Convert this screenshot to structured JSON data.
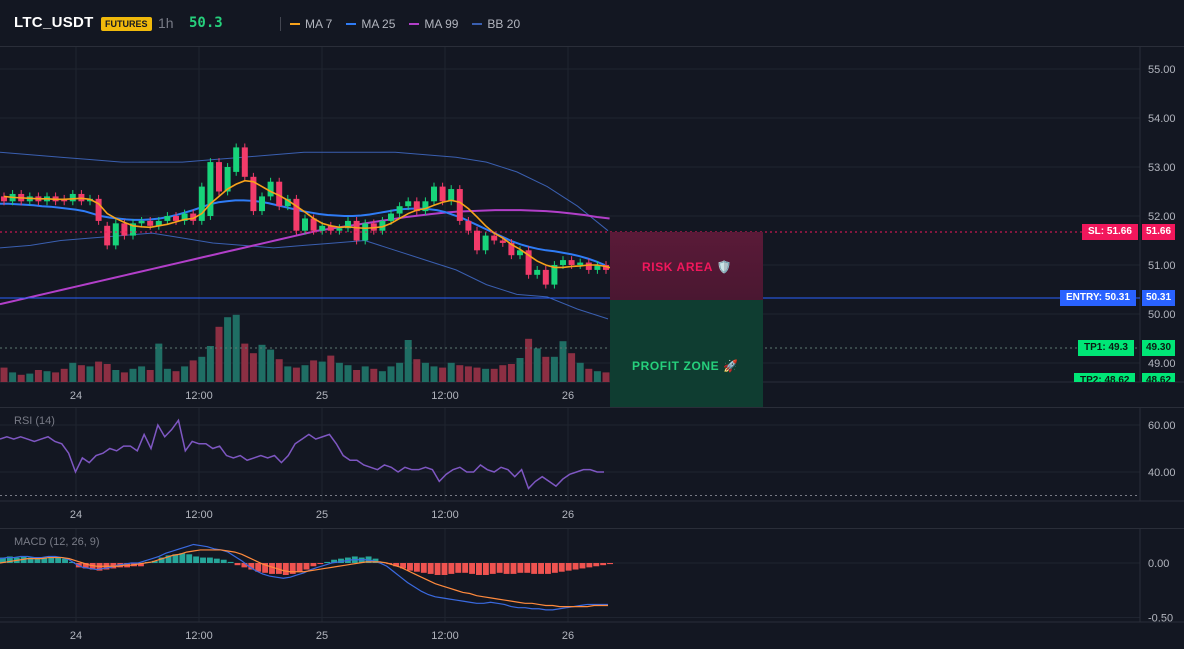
{
  "header": {
    "symbol": "LTC_USDT",
    "badge": "FUTURES",
    "timeframe": "1h",
    "last_price": "50.3",
    "indicators": [
      {
        "label": "MA 7",
        "color": "#f7a21b"
      },
      {
        "label": "MA 25",
        "color": "#2f7cf6"
      },
      {
        "label": "MA 99",
        "color": "#b23fc9"
      },
      {
        "label": "BB 20",
        "color": "#3a5fb0"
      }
    ]
  },
  "colors": {
    "up": "#26a69a",
    "up_bright": "#17d37a",
    "down": "#f23b6a",
    "vol_up": "#1f6e64",
    "vol_down": "#8c2f43",
    "sl": "#f2175c",
    "entry": "#2962ff",
    "tp": "#00e676",
    "rsi": "#7e57c2",
    "macd": "#3a6ae0",
    "signal": "#ff8a3d"
  },
  "price_axis": {
    "ticks": [
      "55.00",
      "54.00",
      "53.00",
      "52.00",
      "51.00",
      "50.00",
      "49.00"
    ]
  },
  "time_axis": {
    "labels": [
      "24",
      "12:00",
      "25",
      "12:00",
      "26"
    ]
  },
  "trade": {
    "sl_label": "SL: 51.66",
    "sl_value": "51.66",
    "entry_label": "ENTRY: 50.31",
    "entry_value": "50.31",
    "tp1_label": "TP1: 49.3",
    "tp1_value": "49.30",
    "tp2_label": "TP2: 48.62",
    "tp2_value": "48.62",
    "risk_label": "RISK AREA 🛡️",
    "profit_label": "PROFIT ZONE 🚀"
  },
  "rsi": {
    "label": "RSI (14)",
    "ticks": [
      "60.00",
      "40.00"
    ],
    "values": [
      54,
      55,
      54,
      55,
      54,
      53,
      54,
      55,
      53,
      52,
      48,
      40,
      46,
      44,
      47,
      48,
      50,
      49,
      51,
      51,
      49,
      56,
      50,
      60,
      55,
      58,
      62,
      49,
      53,
      52,
      52,
      50,
      51,
      47,
      46,
      47,
      45,
      46,
      47,
      46,
      47,
      44,
      47,
      52,
      54,
      56,
      54,
      55,
      56,
      52,
      47,
      45,
      45,
      43,
      42,
      41,
      43,
      42,
      40,
      42,
      41,
      41,
      42,
      41,
      36,
      39,
      41,
      42,
      40,
      40,
      43,
      41,
      40,
      42,
      41,
      38,
      41,
      33,
      36,
      38,
      36,
      34,
      37,
      39,
      40,
      41,
      41,
      40,
      40
    ],
    "oversold": 30
  },
  "macd": {
    "label": "MACD (12, 26, 9)",
    "ticks": [
      "0.00",
      "-0.50"
    ],
    "hist": [
      0.05,
      0.06,
      0.05,
      0.06,
      0.05,
      0.04,
      0.05,
      0.06,
      0.05,
      0.04,
      0.01,
      -0.04,
      -0.05,
      -0.06,
      -0.07,
      -0.06,
      -0.05,
      -0.04,
      -0.04,
      -0.03,
      -0.03,
      0.01,
      0.02,
      0.05,
      0.07,
      0.08,
      0.09,
      0.08,
      0.06,
      0.05,
      0.05,
      0.04,
      0.03,
      0.01,
      -0.02,
      -0.04,
      -0.06,
      -0.08,
      -0.09,
      -0.1,
      -0.1,
      -0.11,
      -0.1,
      -0.08,
      -0.06,
      -0.03,
      -0.01,
      0.01,
      0.03,
      0.04,
      0.05,
      0.06,
      0.05,
      0.06,
      0.04,
      0.01,
      -0.01,
      -0.03,
      -0.05,
      -0.07,
      -0.08,
      -0.09,
      -0.1,
      -0.11,
      -0.11,
      -0.1,
      -0.09,
      -0.09,
      -0.1,
      -0.11,
      -0.11,
      -0.1,
      -0.09,
      -0.1,
      -0.1,
      -0.09,
      -0.09,
      -0.1,
      -0.1,
      -0.1,
      -0.09,
      -0.08,
      -0.07,
      -0.06,
      -0.05,
      -0.04,
      -0.03,
      -0.02,
      -0.01
    ],
    "macd": [
      0.04,
      0.05,
      0.05,
      0.06,
      0.06,
      0.05,
      0.05,
      0.06,
      0.06,
      0.05,
      0.03,
      -0.01,
      -0.04,
      -0.05,
      -0.06,
      -0.05,
      -0.04,
      -0.02,
      -0.01,
      0.0,
      0.0,
      0.02,
      0.04,
      0.06,
      0.09,
      0.11,
      0.13,
      0.15,
      0.17,
      0.16,
      0.15,
      0.13,
      0.12,
      0.1,
      0.06,
      0.02,
      -0.03,
      -0.07,
      -0.1,
      -0.12,
      -0.13,
      -0.14,
      -0.13,
      -0.11,
      -0.09,
      -0.06,
      -0.04,
      -0.02,
      0.0,
      0.01,
      0.02,
      0.03,
      0.03,
      0.03,
      0.02,
      0.0,
      -0.03,
      -0.08,
      -0.13,
      -0.18,
      -0.22,
      -0.26,
      -0.29,
      -0.31,
      -0.32,
      -0.33,
      -0.34,
      -0.35,
      -0.36,
      -0.37,
      -0.37,
      -0.36,
      -0.37,
      -0.38,
      -0.4,
      -0.41,
      -0.41,
      -0.42,
      -0.42,
      -0.43,
      -0.43,
      -0.42,
      -0.41,
      -0.4,
      -0.39,
      -0.38,
      -0.38,
      -0.38,
      -0.38
    ],
    "signal": [
      0.0,
      0.01,
      0.02,
      0.03,
      0.04,
      0.04,
      0.04,
      0.05,
      0.05,
      0.05,
      0.04,
      0.02,
      0.0,
      -0.02,
      -0.03,
      -0.03,
      -0.03,
      -0.03,
      -0.02,
      -0.02,
      -0.01,
      0.0,
      0.01,
      0.03,
      0.05,
      0.07,
      0.08,
      0.1,
      0.11,
      0.12,
      0.12,
      0.12,
      0.12,
      0.11,
      0.1,
      0.08,
      0.05,
      0.02,
      -0.01,
      -0.03,
      -0.05,
      -0.07,
      -0.08,
      -0.08,
      -0.08,
      -0.07,
      -0.06,
      -0.05,
      -0.04,
      -0.03,
      -0.02,
      -0.01,
      0.0,
      0.01,
      0.01,
      0.01,
      0.0,
      -0.02,
      -0.04,
      -0.07,
      -0.1,
      -0.13,
      -0.16,
      -0.19,
      -0.21,
      -0.23,
      -0.25,
      -0.27,
      -0.28,
      -0.3,
      -0.31,
      -0.32,
      -0.33,
      -0.34,
      -0.35,
      -0.36,
      -0.37,
      -0.37,
      -0.38,
      -0.39,
      -0.39,
      -0.4,
      -0.4,
      -0.4,
      -0.4,
      -0.4,
      -0.39,
      -0.39,
      -0.39
    ]
  },
  "chart_data": {
    "type": "candlestick",
    "ylim": [
      48.4,
      55.4
    ],
    "candles": [
      [
        52.4,
        52.3
      ],
      [
        52.3,
        52.45
      ],
      [
        52.45,
        52.3
      ],
      [
        52.3,
        52.4
      ],
      [
        52.4,
        52.3
      ],
      [
        52.3,
        52.4
      ],
      [
        52.4,
        52.3
      ],
      [
        52.35,
        52.3
      ],
      [
        52.3,
        52.45
      ],
      [
        52.45,
        52.3
      ],
      [
        52.3,
        52.35
      ],
      [
        52.35,
        51.9
      ],
      [
        51.8,
        51.4
      ],
      [
        51.4,
        51.85
      ],
      [
        51.85,
        51.6
      ],
      [
        51.6,
        51.85
      ],
      [
        51.85,
        51.9
      ],
      [
        51.9,
        51.8
      ],
      [
        51.8,
        51.9
      ],
      [
        51.9,
        52.0
      ],
      [
        52.0,
        51.9
      ],
      [
        51.9,
        52.05
      ],
      [
        52.05,
        51.9
      ],
      [
        51.9,
        52.6
      ],
      [
        52.0,
        53.1
      ],
      [
        53.1,
        52.5
      ],
      [
        52.5,
        53.0
      ],
      [
        52.9,
        53.4
      ],
      [
        53.4,
        52.8
      ],
      [
        52.8,
        52.1
      ],
      [
        52.1,
        52.4
      ],
      [
        52.4,
        52.7
      ],
      [
        52.7,
        52.2
      ],
      [
        52.2,
        52.35
      ],
      [
        52.35,
        51.7
      ],
      [
        51.7,
        51.95
      ],
      [
        51.95,
        51.7
      ],
      [
        51.7,
        51.8
      ],
      [
        51.8,
        51.7
      ],
      [
        51.7,
        51.75
      ],
      [
        51.75,
        51.9
      ],
      [
        51.9,
        51.5
      ],
      [
        51.5,
        51.85
      ],
      [
        51.85,
        51.7
      ],
      [
        51.7,
        51.9
      ],
      [
        51.9,
        52.05
      ],
      [
        52.05,
        52.2
      ],
      [
        52.2,
        52.3
      ],
      [
        52.3,
        52.1
      ],
      [
        52.1,
        52.3
      ],
      [
        52.3,
        52.6
      ],
      [
        52.6,
        52.3
      ],
      [
        52.3,
        52.55
      ],
      [
        52.55,
        51.9
      ],
      [
        51.9,
        51.7
      ],
      [
        51.7,
        51.3
      ],
      [
        51.3,
        51.6
      ],
      [
        51.6,
        51.5
      ],
      [
        51.5,
        51.45
      ],
      [
        51.45,
        51.2
      ],
      [
        51.2,
        51.3
      ],
      [
        51.3,
        50.8
      ],
      [
        50.8,
        50.9
      ],
      [
        50.9,
        50.6
      ],
      [
        50.6,
        51.0
      ],
      [
        51.0,
        51.1
      ],
      [
        51.1,
        51.0
      ],
      [
        51.0,
        51.05
      ],
      [
        51.05,
        50.9
      ],
      [
        50.9,
        51.0
      ],
      [
        51.0,
        50.9
      ],
      [
        50.9,
        50.8
      ],
      [
        50.8,
        50.35
      ],
      [
        50.35,
        50.0
      ],
      [
        50.0,
        50.2
      ],
      [
        50.2,
        50.4
      ],
      [
        50.4,
        50.3
      ],
      [
        50.3,
        49.95
      ],
      [
        49.95,
        50.15
      ],
      [
        50.15,
        50.3
      ],
      [
        50.3,
        50.25
      ],
      [
        50.25,
        50.35
      ],
      [
        50.35,
        50.3
      ],
      [
        50.3,
        50.3
      ]
    ],
    "ma7": [
      52.4,
      52.38,
      52.37,
      52.36,
      52.35,
      52.35,
      52.34,
      52.34,
      52.35,
      52.36,
      52.34,
      52.25,
      52.05,
      51.95,
      51.87,
      51.8,
      51.78,
      51.77,
      51.8,
      51.83,
      51.88,
      51.93,
      51.95,
      52.05,
      52.25,
      52.4,
      52.55,
      52.65,
      52.72,
      52.7,
      52.6,
      52.5,
      52.42,
      52.32,
      52.2,
      52.08,
      51.95,
      51.85,
      51.8,
      51.77,
      51.78,
      51.76,
      51.75,
      51.76,
      51.78,
      51.85,
      51.95,
      52.05,
      52.12,
      52.15,
      52.22,
      52.28,
      52.32,
      52.28,
      52.15,
      51.98,
      51.8,
      51.65,
      51.55,
      51.42,
      51.32,
      51.2,
      51.08,
      51.0,
      50.95,
      50.95,
      50.97,
      50.98,
      51.0,
      51.0,
      50.97,
      50.92,
      50.8,
      50.65,
      50.52,
      50.45,
      50.4,
      50.32,
      50.25,
      50.22,
      50.25,
      50.28,
      50.3,
      50.3
    ],
    "ma25": [
      52.25,
      52.25,
      52.24,
      52.23,
      52.22,
      52.2,
      52.19,
      52.17,
      52.15,
      52.13,
      52.1,
      52.05,
      52.0,
      51.97,
      51.95,
      51.93,
      51.92,
      51.92,
      51.93,
      51.95,
      51.98,
      52.02,
      52.07,
      52.12,
      52.18,
      52.24,
      52.28,
      52.3,
      52.32,
      52.32,
      52.31,
      52.29,
      52.26,
      52.22,
      52.18,
      52.14,
      52.1,
      52.07,
      52.04,
      52.02,
      52.01,
      52.0,
      52.0,
      52.01,
      52.03,
      52.06,
      52.09,
      52.12,
      52.14,
      52.15,
      52.15,
      52.14,
      52.12,
      52.08,
      52.02,
      51.96,
      51.88,
      51.8,
      51.72,
      51.64,
      51.56,
      51.48,
      51.42,
      51.37,
      51.33,
      51.3,
      51.28,
      51.25,
      51.22,
      51.18,
      51.13,
      51.07,
      51.0
    ],
    "ma99": [
      50.2,
      50.26,
      50.32,
      50.38,
      50.44,
      50.5,
      50.56,
      50.62,
      50.68,
      50.74,
      50.8,
      50.86,
      50.92,
      50.98,
      51.04,
      51.1,
      51.16,
      51.22,
      51.28,
      51.34,
      51.4,
      51.46,
      51.52,
      51.58,
      51.64,
      51.7,
      51.74,
      51.78,
      51.82,
      51.86,
      51.9,
      51.94,
      51.98,
      52.01,
      52.04,
      52.07,
      52.09,
      52.1,
      52.11,
      52.12,
      52.12,
      52.12,
      52.11,
      52.1,
      52.08,
      52.05,
      52.02,
      51.98,
      51.95
    ],
    "bb_upper": [
      53.3,
      53.25,
      53.2,
      53.15,
      53.1,
      53.1,
      53.1,
      53.15,
      53.2,
      53.25,
      53.3,
      53.3,
      53.3,
      53.3,
      53.25,
      53.2,
      53.1,
      52.9,
      52.6,
      52.2,
      51.7
    ],
    "bb_lower": [
      51.35,
      51.4,
      51.5,
      51.55,
      51.6,
      51.65,
      51.55,
      51.45,
      51.4,
      51.35,
      51.4,
      51.45,
      51.5,
      51.3,
      51.1,
      50.9,
      50.6,
      50.4,
      50.35,
      50.1,
      49.9
    ],
    "volume": [
      1.2,
      0.8,
      0.6,
      0.7,
      1.0,
      0.9,
      0.8,
      1.1,
      1.6,
      1.4,
      1.3,
      1.7,
      1.5,
      1.0,
      0.8,
      1.1,
      1.3,
      1.0,
      3.2,
      1.1,
      0.9,
      1.3,
      1.8,
      2.1,
      3.0,
      4.6,
      5.4,
      5.6,
      3.2,
      2.4,
      3.1,
      2.7,
      1.9,
      1.3,
      1.2,
      1.4,
      1.8,
      1.7,
      2.2,
      1.6,
      1.4,
      1.0,
      1.3,
      1.1,
      0.9,
      1.3,
      1.6,
      3.5,
      1.9,
      1.6,
      1.3,
      1.2,
      1.6,
      1.4,
      1.3,
      1.2,
      1.1,
      1.1,
      1.4,
      1.5,
      2.0,
      3.6,
      2.8,
      2.1,
      2.1,
      3.4,
      2.4,
      1.6,
      1.1,
      0.9,
      0.8,
      1.1,
      3.2,
      3.4,
      1.6,
      1.1,
      1.2,
      1.1,
      0.9,
      0.8,
      0.8,
      0.7,
      0.6,
      1.5
    ]
  }
}
